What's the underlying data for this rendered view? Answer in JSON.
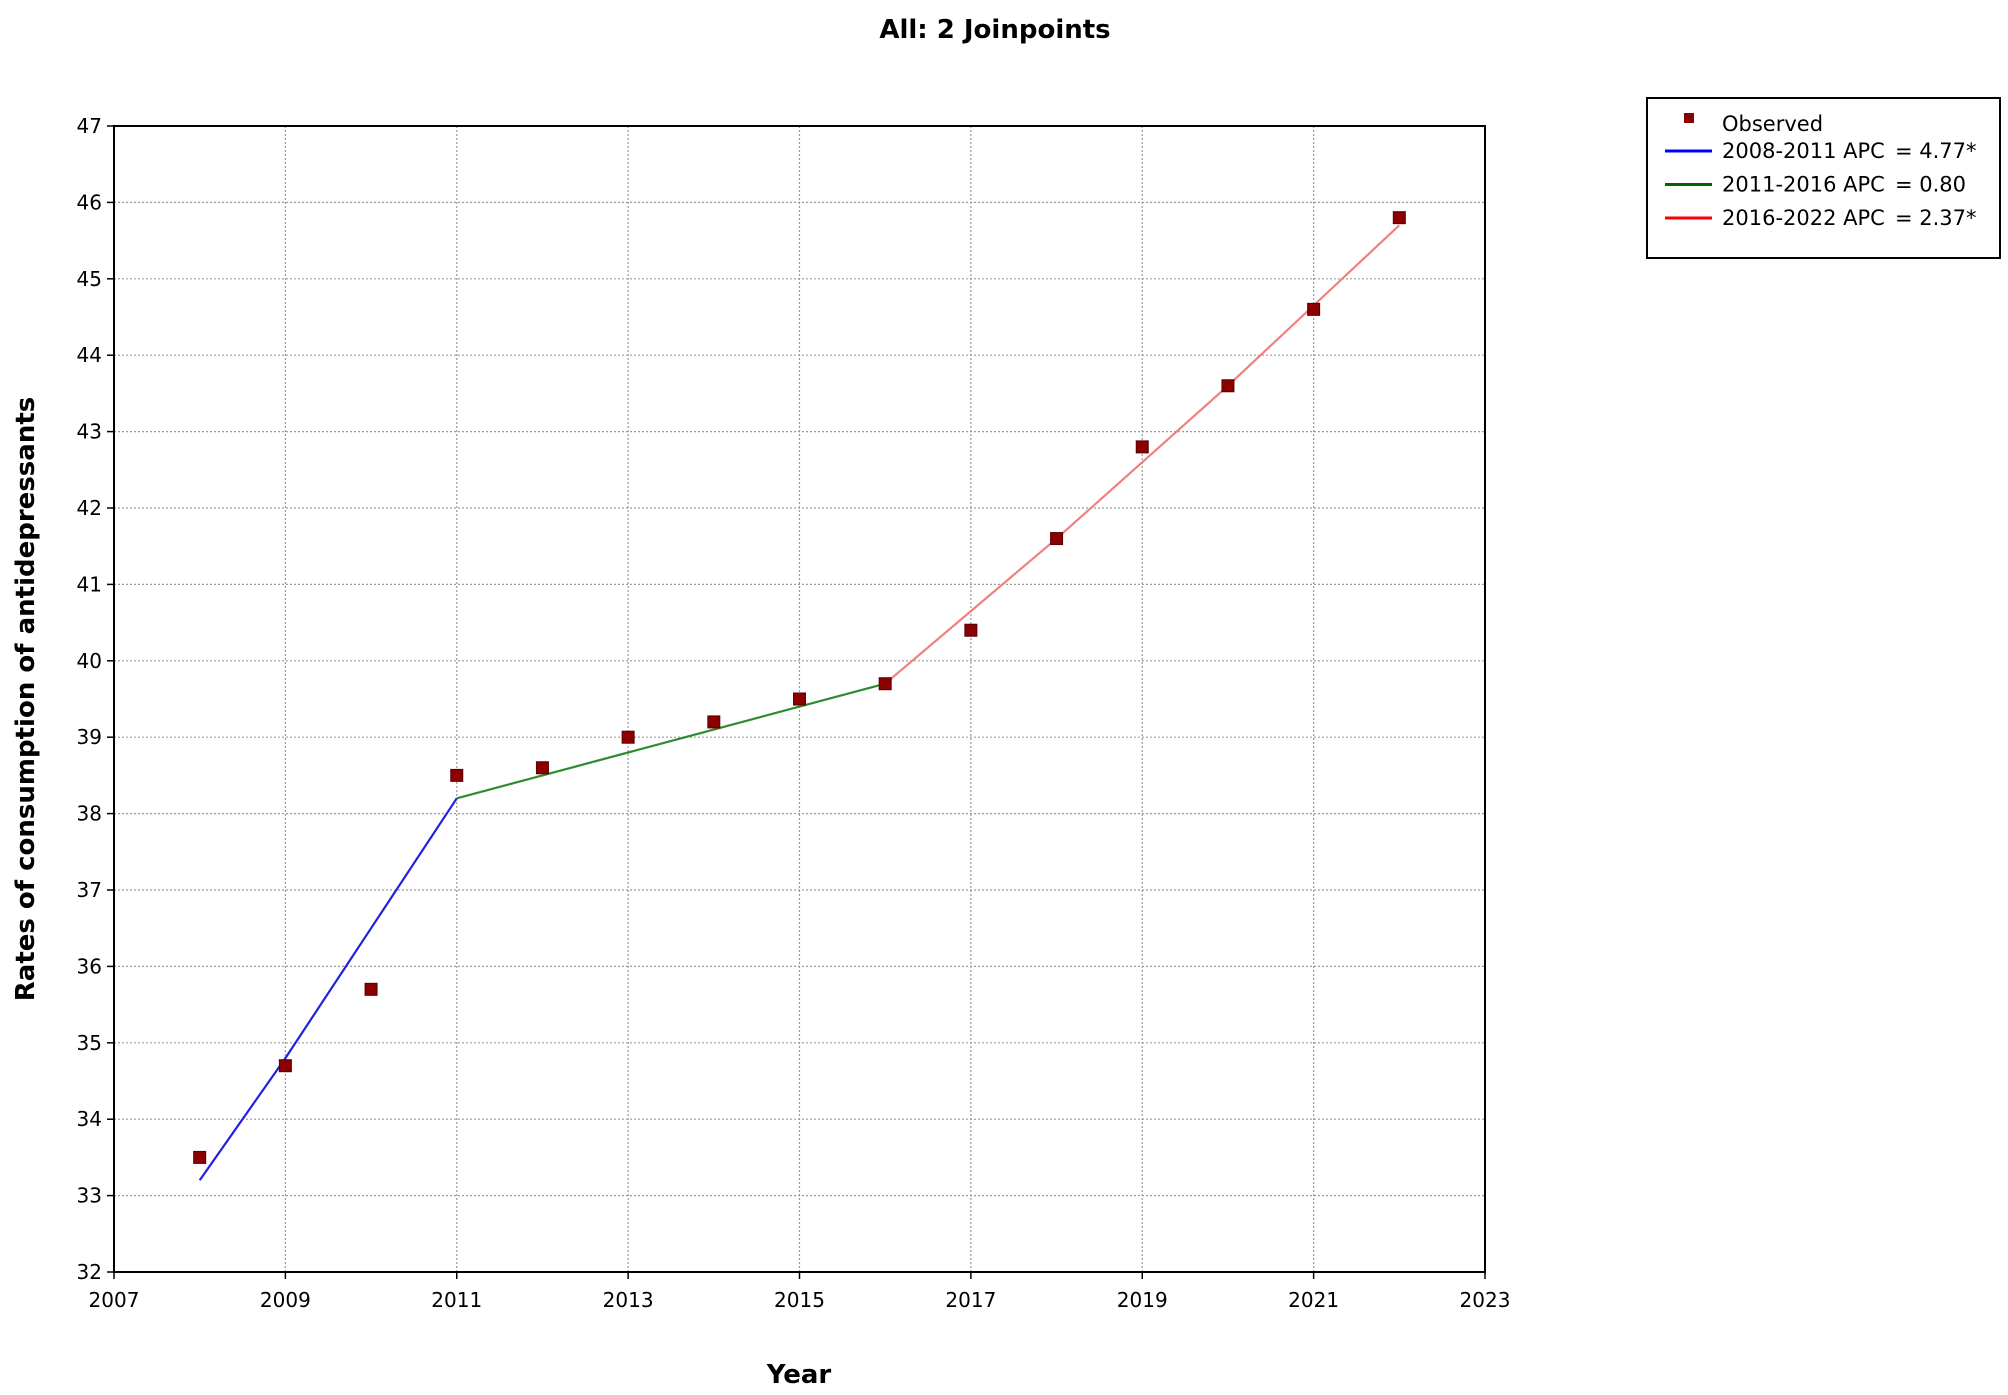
{
  "chart_data": {
    "type": "line",
    "title": "All: 2 Joinpoints",
    "xlabel": "Year",
    "ylabel": "Rates of consumption of antidepressants",
    "xlim": [
      2007,
      2023
    ],
    "ylim": [
      32,
      47
    ],
    "xticks": [
      2007,
      2009,
      2011,
      2013,
      2015,
      2017,
      2019,
      2021,
      2023
    ],
    "yticks": [
      32,
      33,
      34,
      35,
      36,
      37,
      38,
      39,
      40,
      41,
      42,
      43,
      44,
      45,
      46,
      47
    ],
    "grid": true,
    "legend_position": "top-right-outside",
    "observed": {
      "name": "Observed",
      "color": "#8b0000",
      "x": [
        2008,
        2009,
        2010,
        2011,
        2012,
        2013,
        2014,
        2015,
        2016,
        2017,
        2018,
        2019,
        2020,
        2021,
        2022
      ],
      "y": [
        33.5,
        34.7,
        35.7,
        38.5,
        38.6,
        39.0,
        39.2,
        39.5,
        39.7,
        40.4,
        41.6,
        42.8,
        43.6,
        44.6,
        45.8
      ]
    },
    "series": [
      {
        "name": "2008-2011 APC",
        "apc": "4.77*",
        "color": "#2020e0",
        "legend_color": "#0000ff",
        "x": [
          2008,
          2009,
          2010,
          2011
        ],
        "y": [
          33.2,
          34.8,
          36.5,
          38.2
        ]
      },
      {
        "name": "2011-2016 APC",
        "apc": "0.80",
        "color": "#2e8b2e",
        "legend_color": "#006400",
        "x": [
          2011,
          2012,
          2013,
          2014,
          2015,
          2016
        ],
        "y": [
          38.2,
          38.5,
          38.8,
          39.1,
          39.4,
          39.7
        ]
      },
      {
        "name": "2016-2022 APC",
        "apc": "2.37*",
        "color": "#f08080",
        "legend_color": "#ff0000",
        "x": [
          2016,
          2017,
          2018,
          2019,
          2020,
          2021,
          2022
        ],
        "y": [
          39.7,
          40.65,
          41.6,
          42.6,
          43.6,
          44.65,
          45.7
        ]
      }
    ]
  }
}
